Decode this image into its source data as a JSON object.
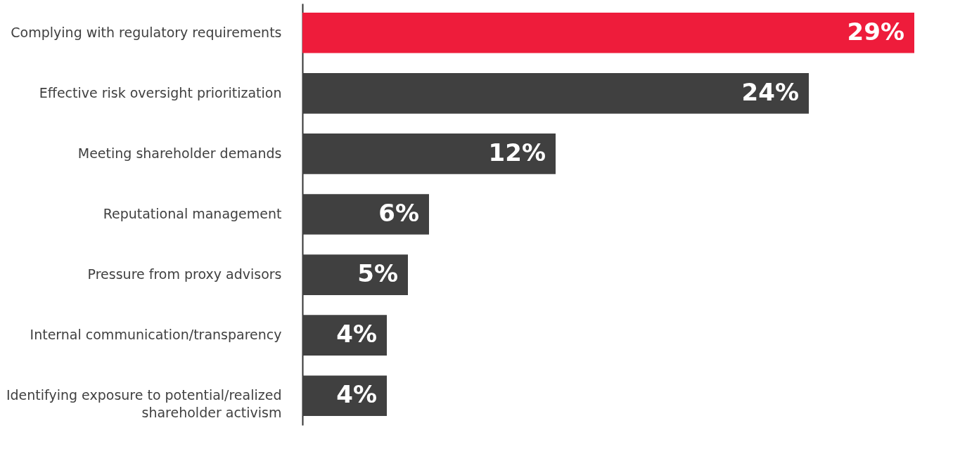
{
  "chart_data": {
    "type": "bar",
    "orientation": "horizontal",
    "categories": [
      "Complying with regulatory requirements",
      "Effective risk oversight prioritization",
      "Meeting shareholder demands",
      "Reputational management",
      "Pressure from proxy advisors",
      "Internal communication/transparency",
      "Identifying exposure to potential/realized shareholder activism"
    ],
    "values": [
      29,
      24,
      12,
      6,
      5,
      4,
      4
    ],
    "colors": [
      "#ee1c3b",
      "#404040",
      "#404040",
      "#404040",
      "#404040",
      "#404040",
      "#404040"
    ],
    "value_labels": [
      "29%",
      "24%",
      "12%",
      "6%",
      "5%",
      "4%",
      "4%"
    ],
    "xlim": [
      0,
      29
    ],
    "tick_labels": "y"
  }
}
